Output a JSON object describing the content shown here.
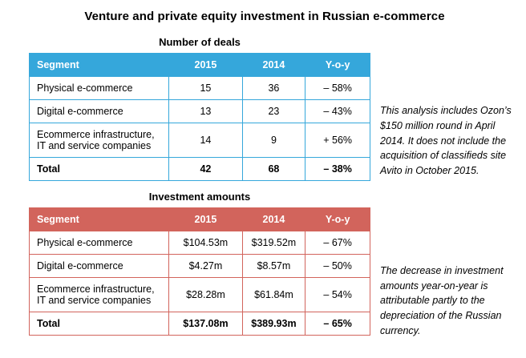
{
  "title": "Venture and private equity investment in Russian e-commerce",
  "colors": {
    "deals_accent": "#35a7db",
    "amounts_accent": "#d2645c"
  },
  "tables": [
    {
      "title": "Number of deals",
      "headers": [
        "Segment",
        "2015",
        "2014",
        "Y-o-y"
      ],
      "rows": [
        [
          "Physical e-commerce",
          "15",
          "36",
          "– 58%"
        ],
        [
          "Digital e-commerce",
          "13",
          "23",
          "– 43%"
        ],
        [
          "Ecommerce infrastructure, IT and service companies",
          "14",
          "9",
          "+ 56%"
        ],
        [
          "Total",
          "42",
          "68",
          "– 38%"
        ]
      ]
    },
    {
      "title": "Investment amounts",
      "headers": [
        "Segment",
        "2015",
        "2014",
        "Y-o-y"
      ],
      "rows": [
        [
          "Physical e-commerce",
          "$104.53m",
          "$319.52m",
          "– 67%"
        ],
        [
          "Digital e-commerce",
          "$4.27m",
          "$8.57m",
          "– 50%"
        ],
        [
          "Ecommerce infrastructure, IT and service companies",
          "$28.28m",
          "$61.84m",
          "– 54%"
        ],
        [
          "Total",
          "$137.08m",
          "$389.93m",
          "– 65%"
        ]
      ]
    }
  ],
  "notes": [
    "This analysis includes Ozon’s $150 million round in April 2014. It does not include the acquisition of classifieds site Avito in October 2015.",
    "The decrease in investment amounts year-on-year is attributable partly to the depreciation of the Russian currency."
  ],
  "chart_data": [
    {
      "type": "table",
      "title": "Number of deals",
      "categories": [
        "Physical e-commerce",
        "Digital e-commerce",
        "Ecommerce infrastructure, IT and service companies",
        "Total"
      ],
      "series": [
        {
          "name": "2015",
          "values": [
            15,
            13,
            14,
            42
          ]
        },
        {
          "name": "2014",
          "values": [
            36,
            23,
            9,
            68
          ]
        },
        {
          "name": "Y-o-y",
          "values": [
            "-58%",
            "-43%",
            "+56%",
            "-38%"
          ]
        }
      ]
    },
    {
      "type": "table",
      "title": "Investment amounts",
      "categories": [
        "Physical e-commerce",
        "Digital e-commerce",
        "Ecommerce infrastructure, IT and service companies",
        "Total"
      ],
      "series": [
        {
          "name": "2015",
          "values": [
            "$104.53m",
            "$4.27m",
            "$28.28m",
            "$137.08m"
          ]
        },
        {
          "name": "2014",
          "values": [
            "$319.52m",
            "$8.57m",
            "$61.84m",
            "$389.93m"
          ]
        },
        {
          "name": "Y-o-y",
          "values": [
            "-67%",
            "-50%",
            "-54%",
            "-65%"
          ]
        }
      ]
    }
  ]
}
